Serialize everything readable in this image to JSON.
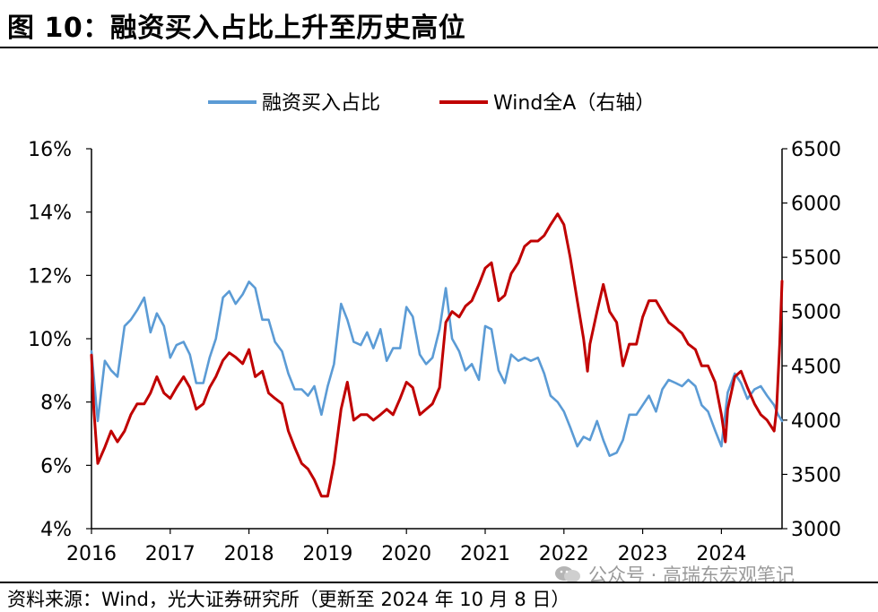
{
  "header": {
    "title": "图 10：融资买入占比上升至历史高位"
  },
  "footer": {
    "source": "资料来源：Wind，光大证券研究所（更新至 2024 年 10 月 8 日）",
    "watermark": "公众号 · 高瑞东宏观笔记",
    "watermark_icon": "wechat-icon"
  },
  "chart_data": {
    "type": "line",
    "title": "融资买入占比上升至历史高位",
    "legend_position": "top-center",
    "grid": false,
    "x_ticks": [
      "2016",
      "2017",
      "2018",
      "2019",
      "2020",
      "2021",
      "2022",
      "2023",
      "2024"
    ],
    "x_range": [
      2016.0,
      2024.77
    ],
    "left_axis": {
      "ticks": [
        "4%",
        "6%",
        "8%",
        "10%",
        "12%",
        "14%",
        "16%"
      ],
      "range": [
        4,
        16
      ],
      "unit": "%"
    },
    "right_axis": {
      "ticks": [
        "3000",
        "3500",
        "4000",
        "4500",
        "5000",
        "5500",
        "6000",
        "6500"
      ],
      "range": [
        3000,
        6500
      ]
    },
    "series": [
      {
        "name": "融资买入占比",
        "axis": "left",
        "color": "#5b9bd5",
        "points": [
          [
            2016.0,
            9.6
          ],
          [
            2016.08,
            7.4
          ],
          [
            2016.17,
            9.3
          ],
          [
            2016.25,
            9.0
          ],
          [
            2016.33,
            8.8
          ],
          [
            2016.42,
            10.4
          ],
          [
            2016.5,
            10.6
          ],
          [
            2016.58,
            10.9
          ],
          [
            2016.67,
            11.3
          ],
          [
            2016.75,
            10.2
          ],
          [
            2016.83,
            10.8
          ],
          [
            2016.92,
            10.4
          ],
          [
            2017.0,
            9.4
          ],
          [
            2017.08,
            9.8
          ],
          [
            2017.17,
            9.9
          ],
          [
            2017.25,
            9.5
          ],
          [
            2017.33,
            8.6
          ],
          [
            2017.42,
            8.6
          ],
          [
            2017.5,
            9.4
          ],
          [
            2017.58,
            10.0
          ],
          [
            2017.67,
            11.3
          ],
          [
            2017.75,
            11.5
          ],
          [
            2017.83,
            11.1
          ],
          [
            2017.92,
            11.4
          ],
          [
            2018.0,
            11.8
          ],
          [
            2018.08,
            11.6
          ],
          [
            2018.17,
            10.6
          ],
          [
            2018.25,
            10.6
          ],
          [
            2018.33,
            9.9
          ],
          [
            2018.42,
            9.6
          ],
          [
            2018.5,
            8.9
          ],
          [
            2018.58,
            8.4
          ],
          [
            2018.67,
            8.4
          ],
          [
            2018.75,
            8.2
          ],
          [
            2018.83,
            8.5
          ],
          [
            2018.92,
            7.6
          ],
          [
            2019.0,
            8.5
          ],
          [
            2019.08,
            9.2
          ],
          [
            2019.17,
            11.1
          ],
          [
            2019.25,
            10.6
          ],
          [
            2019.33,
            9.9
          ],
          [
            2019.42,
            9.8
          ],
          [
            2019.5,
            10.2
          ],
          [
            2019.58,
            9.7
          ],
          [
            2019.67,
            10.3
          ],
          [
            2019.75,
            9.3
          ],
          [
            2019.83,
            9.7
          ],
          [
            2019.92,
            9.7
          ],
          [
            2020.0,
            11.0
          ],
          [
            2020.08,
            10.7
          ],
          [
            2020.17,
            9.5
          ],
          [
            2020.25,
            9.2
          ],
          [
            2020.33,
            9.4
          ],
          [
            2020.42,
            10.3
          ],
          [
            2020.5,
            11.6
          ],
          [
            2020.58,
            10.0
          ],
          [
            2020.67,
            9.6
          ],
          [
            2020.75,
            9.0
          ],
          [
            2020.83,
            9.2
          ],
          [
            2020.92,
            8.7
          ],
          [
            2021.0,
            10.4
          ],
          [
            2021.08,
            10.3
          ],
          [
            2021.17,
            9.0
          ],
          [
            2021.25,
            8.6
          ],
          [
            2021.33,
            9.5
          ],
          [
            2021.42,
            9.3
          ],
          [
            2021.5,
            9.4
          ],
          [
            2021.58,
            9.3
          ],
          [
            2021.67,
            9.4
          ],
          [
            2021.75,
            8.9
          ],
          [
            2021.83,
            8.2
          ],
          [
            2021.92,
            8.0
          ],
          [
            2022.0,
            7.7
          ],
          [
            2022.08,
            7.2
          ],
          [
            2022.17,
            6.6
          ],
          [
            2022.25,
            6.9
          ],
          [
            2022.33,
            6.8
          ],
          [
            2022.42,
            7.4
          ],
          [
            2022.5,
            6.8
          ],
          [
            2022.58,
            6.3
          ],
          [
            2022.67,
            6.4
          ],
          [
            2022.75,
            6.8
          ],
          [
            2022.83,
            7.6
          ],
          [
            2022.92,
            7.6
          ],
          [
            2023.0,
            7.9
          ],
          [
            2023.08,
            8.2
          ],
          [
            2023.17,
            7.7
          ],
          [
            2023.25,
            8.4
          ],
          [
            2023.33,
            8.7
          ],
          [
            2023.42,
            8.6
          ],
          [
            2023.5,
            8.5
          ],
          [
            2023.58,
            8.7
          ],
          [
            2023.67,
            8.5
          ],
          [
            2023.75,
            7.9
          ],
          [
            2023.83,
            7.7
          ],
          [
            2023.92,
            7.1
          ],
          [
            2024.0,
            6.6
          ],
          [
            2024.08,
            8.3
          ],
          [
            2024.17,
            8.9
          ],
          [
            2024.25,
            8.6
          ],
          [
            2024.33,
            8.1
          ],
          [
            2024.42,
            8.4
          ],
          [
            2024.5,
            8.5
          ],
          [
            2024.58,
            8.2
          ],
          [
            2024.67,
            7.9
          ],
          [
            2024.72,
            7.6
          ],
          [
            2024.77,
            7.4
          ]
        ]
      },
      {
        "name": "Wind全A（右轴）",
        "axis": "right",
        "color": "#c00000",
        "points": [
          [
            2016.0,
            4600
          ],
          [
            2016.03,
            4100
          ],
          [
            2016.08,
            3600
          ],
          [
            2016.17,
            3750
          ],
          [
            2016.25,
            3900
          ],
          [
            2016.33,
            3800
          ],
          [
            2016.42,
            3900
          ],
          [
            2016.5,
            4050
          ],
          [
            2016.58,
            4150
          ],
          [
            2016.67,
            4150
          ],
          [
            2016.75,
            4250
          ],
          [
            2016.83,
            4400
          ],
          [
            2016.92,
            4250
          ],
          [
            2017.0,
            4200
          ],
          [
            2017.08,
            4300
          ],
          [
            2017.17,
            4400
          ],
          [
            2017.25,
            4300
          ],
          [
            2017.33,
            4100
          ],
          [
            2017.42,
            4150
          ],
          [
            2017.5,
            4300
          ],
          [
            2017.58,
            4400
          ],
          [
            2017.67,
            4550
          ],
          [
            2017.75,
            4620
          ],
          [
            2017.83,
            4580
          ],
          [
            2017.92,
            4520
          ],
          [
            2018.0,
            4650
          ],
          [
            2018.08,
            4400
          ],
          [
            2018.17,
            4450
          ],
          [
            2018.25,
            4250
          ],
          [
            2018.33,
            4200
          ],
          [
            2018.42,
            4150
          ],
          [
            2018.5,
            3900
          ],
          [
            2018.58,
            3750
          ],
          [
            2018.67,
            3600
          ],
          [
            2018.75,
            3550
          ],
          [
            2018.83,
            3450
          ],
          [
            2018.92,
            3300
          ],
          [
            2019.0,
            3300
          ],
          [
            2019.08,
            3600
          ],
          [
            2019.17,
            4100
          ],
          [
            2019.25,
            4350
          ],
          [
            2019.33,
            4000
          ],
          [
            2019.42,
            4050
          ],
          [
            2019.5,
            4050
          ],
          [
            2019.58,
            4000
          ],
          [
            2019.67,
            4050
          ],
          [
            2019.75,
            4100
          ],
          [
            2019.83,
            4050
          ],
          [
            2019.92,
            4200
          ],
          [
            2020.0,
            4350
          ],
          [
            2020.08,
            4300
          ],
          [
            2020.17,
            4050
          ],
          [
            2020.25,
            4100
          ],
          [
            2020.33,
            4150
          ],
          [
            2020.42,
            4300
          ],
          [
            2020.5,
            4900
          ],
          [
            2020.58,
            5000
          ],
          [
            2020.67,
            4950
          ],
          [
            2020.75,
            5050
          ],
          [
            2020.83,
            5100
          ],
          [
            2020.92,
            5250
          ],
          [
            2021.0,
            5400
          ],
          [
            2021.08,
            5450
          ],
          [
            2021.17,
            5100
          ],
          [
            2021.25,
            5150
          ],
          [
            2021.33,
            5350
          ],
          [
            2021.42,
            5450
          ],
          [
            2021.5,
            5600
          ],
          [
            2021.58,
            5650
          ],
          [
            2021.67,
            5650
          ],
          [
            2021.75,
            5700
          ],
          [
            2021.83,
            5800
          ],
          [
            2021.92,
            5900
          ],
          [
            2022.0,
            5800
          ],
          [
            2022.08,
            5500
          ],
          [
            2022.17,
            5100
          ],
          [
            2022.25,
            4750
          ],
          [
            2022.3,
            4450
          ],
          [
            2022.33,
            4700
          ],
          [
            2022.42,
            5000
          ],
          [
            2022.5,
            5250
          ],
          [
            2022.58,
            5000
          ],
          [
            2022.67,
            4900
          ],
          [
            2022.75,
            4500
          ],
          [
            2022.83,
            4700
          ],
          [
            2022.92,
            4700
          ],
          [
            2023.0,
            4950
          ],
          [
            2023.08,
            5100
          ],
          [
            2023.17,
            5100
          ],
          [
            2023.25,
            5000
          ],
          [
            2023.33,
            4900
          ],
          [
            2023.42,
            4850
          ],
          [
            2023.5,
            4800
          ],
          [
            2023.58,
            4700
          ],
          [
            2023.67,
            4650
          ],
          [
            2023.75,
            4500
          ],
          [
            2023.83,
            4500
          ],
          [
            2023.92,
            4350
          ],
          [
            2024.0,
            4050
          ],
          [
            2024.05,
            3800
          ],
          [
            2024.08,
            4100
          ],
          [
            2024.17,
            4400
          ],
          [
            2024.25,
            4450
          ],
          [
            2024.33,
            4300
          ],
          [
            2024.42,
            4150
          ],
          [
            2024.5,
            4050
          ],
          [
            2024.58,
            4000
          ],
          [
            2024.67,
            3900
          ],
          [
            2024.7,
            4100
          ],
          [
            2024.74,
            4700
          ],
          [
            2024.77,
            5280
          ]
        ]
      }
    ]
  }
}
